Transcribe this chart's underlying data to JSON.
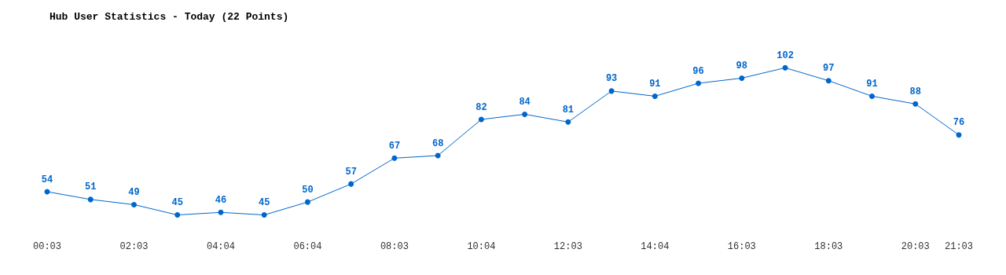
{
  "chart_data": {
    "type": "line",
    "title": "Hub User Statistics - Today (22 Points)",
    "categories": [
      "00:03",
      null,
      "02:03",
      null,
      "04:04",
      null,
      "06:04",
      null,
      "08:03",
      null,
      "10:04",
      null,
      "12:03",
      null,
      "14:04",
      null,
      "16:03",
      null,
      "18:03",
      null,
      "20:03",
      "21:03"
    ],
    "series": [
      {
        "color": "#0066cc",
        "values": [
          54,
          51,
          49,
          45,
          46,
          45,
          50,
          57,
          67,
          68,
          82,
          84,
          81,
          93,
          91,
          96,
          98,
          102,
          97,
          91,
          88,
          76
        ]
      }
    ],
    "data_labels": true,
    "marker": "circle",
    "line_style": "solid",
    "grid": false
  }
}
